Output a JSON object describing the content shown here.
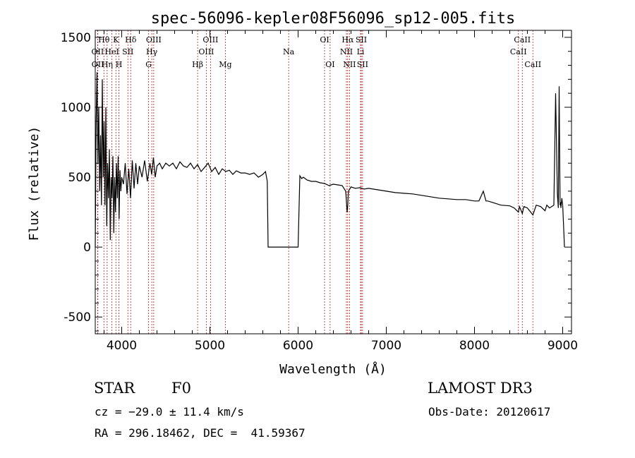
{
  "chart_data": {
    "type": "line",
    "title": "spec-56096-kepler08F56096_sp12-005.fits",
    "xlabel": "Wavelength (Å)",
    "ylabel": "Flux (relative)",
    "xlim": [
      3700,
      9100
    ],
    "ylim": [
      -620,
      1550
    ],
    "xticks": [
      4000,
      5000,
      6000,
      7000,
      8000,
      9000
    ],
    "yticks": [
      -500,
      0,
      500,
      1000,
      1500
    ],
    "series": [
      {
        "name": "flux",
        "x": [
          3700,
          3710,
          3720,
          3730,
          3740,
          3750,
          3760,
          3770,
          3780,
          3790,
          3800,
          3810,
          3820,
          3830,
          3840,
          3850,
          3860,
          3870,
          3880,
          3890,
          3900,
          3910,
          3920,
          3930,
          3940,
          3950,
          3960,
          3970,
          3980,
          3990,
          4000,
          4020,
          4040,
          4060,
          4080,
          4100,
          4120,
          4140,
          4160,
          4180,
          4200,
          4230,
          4260,
          4290,
          4320,
          4340,
          4360,
          4380,
          4400,
          4430,
          4460,
          4500,
          4540,
          4580,
          4620,
          4660,
          4700,
          4740,
          4780,
          4820,
          4860,
          4900,
          4940,
          4980,
          5020,
          5060,
          5100,
          5140,
          5180,
          5220,
          5260,
          5300,
          5350,
          5400,
          5450,
          5500,
          5550,
          5600,
          5630,
          5650,
          5660,
          5680,
          5700,
          6000,
          6020,
          6040,
          6060,
          6100,
          6150,
          6200,
          6250,
          6300,
          6350,
          6400,
          6450,
          6500,
          6540,
          6556,
          6563,
          6570,
          6600,
          6650,
          6700,
          6750,
          6800,
          6900,
          7000,
          7100,
          7200,
          7300,
          7400,
          7500,
          7600,
          7700,
          7800,
          7900,
          8000,
          8050,
          8100,
          8130,
          8150,
          8200,
          8300,
          8400,
          8450,
          8498,
          8510,
          8542,
          8560,
          8600,
          8662,
          8700,
          8750,
          8800,
          8820,
          8850,
          8900,
          8920,
          8940,
          8950,
          8960,
          8970,
          8975,
          8980,
          8990,
          9000,
          9010,
          9020
        ],
        "values": [
          0,
          900,
          1250,
          600,
          1000,
          400,
          800,
          300,
          1200,
          500,
          900,
          300,
          1000,
          150,
          600,
          350,
          700,
          50,
          500,
          350,
          650,
          100,
          500,
          250,
          600,
          350,
          650,
          200,
          550,
          400,
          500,
          450,
          600,
          380,
          560,
          350,
          620,
          420,
          600,
          450,
          580,
          500,
          620,
          470,
          600,
          520,
          640,
          500,
          580,
          600,
          560,
          600,
          580,
          600,
          560,
          610,
          580,
          570,
          600,
          560,
          590,
          540,
          570,
          600,
          540,
          570,
          520,
          560,
          540,
          550,
          520,
          545,
          530,
          530,
          520,
          530,
          500,
          520,
          540,
          470,
          0,
          0,
          0,
          0,
          510,
          490,
          500,
          480,
          470,
          470,
          460,
          455,
          440,
          450,
          445,
          440,
          400,
          250,
          300,
          400,
          430,
          420,
          425,
          415,
          420,
          410,
          400,
          390,
          385,
          380,
          370,
          360,
          350,
          345,
          340,
          340,
          330,
          330,
          400,
          330,
          330,
          320,
          300,
          295,
          280,
          250,
          290,
          240,
          290,
          280,
          230,
          300,
          290,
          260,
          300,
          280,
          300,
          1100,
          380,
          280,
          1150,
          300,
          320,
          280,
          350,
          300,
          150,
          0
        ]
      }
    ],
    "lines": [
      {
        "name": "Hθ",
        "wl": 3798,
        "row": 0
      },
      {
        "name": "OII",
        "wl": 3727,
        "row": 1
      },
      {
        "name": "OII",
        "wl": 3729,
        "row": 2
      },
      {
        "name": "K",
        "wl": 3934,
        "row": 0
      },
      {
        "name": "HeI",
        "wl": 3889,
        "row": 1
      },
      {
        "name": "Hη",
        "wl": 3835,
        "row": 2
      },
      {
        "name": "H",
        "wl": 3968,
        "row": 2
      },
      {
        "name": "Hδ",
        "wl": 4102,
        "row": 0
      },
      {
        "name": "SII",
        "wl": 4070,
        "row": 1
      },
      {
        "name": "OIII",
        "wl": 4363,
        "row": 0
      },
      {
        "name": "Hγ",
        "wl": 4341,
        "row": 1
      },
      {
        "name": "G",
        "wl": 4305,
        "row": 2
      },
      {
        "name": "Hβ",
        "wl": 4861,
        "row": 2
      },
      {
        "name": "OIII",
        "wl": 4959,
        "row": 1
      },
      {
        "name": "OIII",
        "wl": 5007,
        "row": 0
      },
      {
        "name": "Mg",
        "wl": 5175,
        "row": 2
      },
      {
        "name": "Na",
        "wl": 5893,
        "row": 1
      },
      {
        "name": "OI",
        "wl": 6300,
        "row": 0
      },
      {
        "name": "OI",
        "wl": 6363,
        "row": 2
      },
      {
        "name": "NII",
        "wl": 6548,
        "row": 1
      },
      {
        "name": "Hα",
        "wl": 6563,
        "row": 0
      },
      {
        "name": "NII",
        "wl": 6583,
        "row": 2
      },
      {
        "name": "Li",
        "wl": 6708,
        "row": 1
      },
      {
        "name": "SII",
        "wl": 6716,
        "row": 0
      },
      {
        "name": "SII",
        "wl": 6731,
        "row": 2
      },
      {
        "name": "CaII",
        "wl": 8498,
        "row": 1
      },
      {
        "name": "CaII",
        "wl": 8542,
        "row": 0
      },
      {
        "name": "CaII",
        "wl": 8662,
        "row": 2
      }
    ]
  },
  "info": {
    "class": "STAR",
    "subclass": "F0",
    "survey": "LAMOST DR3",
    "redshift": "cz = −29.0 ± 11.4 km/s",
    "obs_date": "Obs-Date: 20120617",
    "coords": "RA = 296.18462, DEC =  41.59367"
  }
}
